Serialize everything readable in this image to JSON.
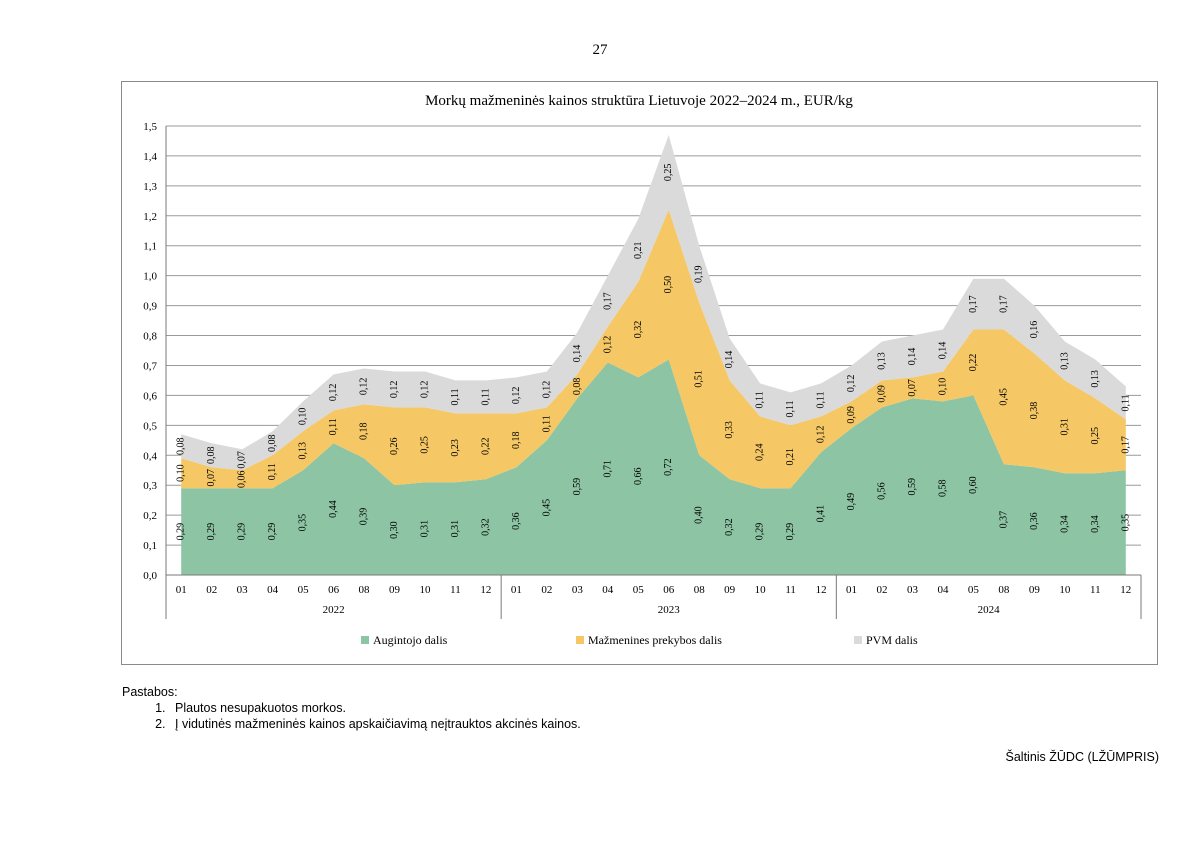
{
  "page_number": "27",
  "colors": {
    "producer": "#8cc4a4",
    "retail": "#f5c865",
    "vat": "#dadada",
    "grid": "#9a9a9a",
    "frame": "#8a8a8a"
  },
  "chart_data": {
    "type": "area",
    "stacked": true,
    "title": "Morkų mažmeninės kainos struktūra Lietuvoje 2022–2024 m., EUR/kg",
    "xlabel": "",
    "ylabel": "",
    "ylim": [
      0,
      1.5
    ],
    "y_ticks": [
      "0,0",
      "0,1",
      "0,2",
      "0,3",
      "0,4",
      "0,5",
      "0,6",
      "0,7",
      "0,8",
      "0,9",
      "1,0",
      "1,1",
      "1,2",
      "1,3",
      "1,4",
      "1,5"
    ],
    "categories": [
      "01",
      "02",
      "03",
      "04",
      "05",
      "06",
      "08",
      "09",
      "10",
      "11",
      "12",
      "01",
      "02",
      "03",
      "04",
      "05",
      "06",
      "08",
      "09",
      "10",
      "11",
      "12",
      "01",
      "02",
      "03",
      "04",
      "05",
      "08",
      "09",
      "10",
      "11",
      "12"
    ],
    "groups": [
      {
        "label": "2022",
        "count": 11
      },
      {
        "label": "2023",
        "count": 11
      },
      {
        "label": "2024",
        "count": 10
      }
    ],
    "legend_position": "bottom",
    "series": [
      {
        "name": "Augintojo dalis",
        "color_key": "producer",
        "values": [
          0.29,
          0.29,
          0.29,
          0.29,
          0.35,
          0.44,
          0.39,
          0.3,
          0.31,
          0.31,
          0.32,
          0.36,
          0.45,
          0.59,
          0.71,
          0.66,
          0.72,
          0.4,
          0.32,
          0.29,
          0.29,
          0.41,
          0.49,
          0.56,
          0.59,
          0.58,
          0.6,
          0.37,
          0.36,
          0.34,
          0.34,
          0.35
        ],
        "labels": [
          "0,29",
          "0,29",
          "0,29",
          "0,29",
          "0,35",
          "0,44",
          "0,39",
          "0,30",
          "0,31",
          "0,31",
          "0,32",
          "0,36",
          "0,45",
          "0,59",
          "0,71",
          "0,66",
          "0,72",
          "0,40",
          "0,32",
          "0,29",
          "0,29",
          "0,41",
          "0,49",
          "0,56",
          "0,59",
          "0,58",
          "0,60",
          "0,37",
          "0,36",
          "0,34",
          "0,34",
          "0,35"
        ]
      },
      {
        "name": "Mažmenines prekybos dalis",
        "color_key": "retail",
        "values": [
          0.1,
          0.07,
          0.06,
          0.11,
          0.13,
          0.11,
          0.18,
          0.26,
          0.25,
          0.23,
          0.22,
          0.18,
          0.11,
          0.08,
          0.12,
          0.32,
          0.5,
          0.51,
          0.33,
          0.24,
          0.21,
          0.12,
          0.09,
          0.09,
          0.07,
          0.1,
          0.22,
          0.45,
          0.38,
          0.31,
          0.25,
          0.17
        ],
        "labels": [
          "0,10",
          "0,07",
          "0,06",
          "0,11",
          "0,13",
          "0,11",
          "0,18",
          "0,26",
          "0,25",
          "0,23",
          "0,22",
          "0,18",
          "0,11",
          "0,08",
          "0,12",
          "0,32",
          "0,50",
          "0,51",
          "0,33",
          "0,24",
          "0,21",
          "0,12",
          "0,09",
          "0,09",
          "0,07",
          "0,10",
          "0,22",
          "0,45",
          "0,38",
          "0,31",
          "0,25",
          "0,17"
        ]
      },
      {
        "name": "PVM dalis",
        "color_key": "vat",
        "values": [
          0.08,
          0.08,
          0.07,
          0.08,
          0.1,
          0.12,
          0.12,
          0.12,
          0.12,
          0.11,
          0.11,
          0.12,
          0.12,
          0.14,
          0.17,
          0.21,
          0.25,
          0.19,
          0.14,
          0.11,
          0.11,
          0.11,
          0.12,
          0.13,
          0.14,
          0.14,
          0.17,
          0.17,
          0.16,
          0.13,
          0.13,
          0.11
        ],
        "labels": [
          "0,08",
          "0,08",
          "0,07",
          "0,08",
          "0,10",
          "0,12",
          "0,12",
          "0,12",
          "0,12",
          "0,11",
          "0,11",
          "0,12",
          "0,12",
          "0,14",
          "0,17",
          "0,21",
          "0,25",
          "0,19",
          "0,14",
          "0,11",
          "0,11",
          "0,11",
          "0,12",
          "0,13",
          "0,14",
          "0,14",
          "0,17",
          "0,17",
          "0,16",
          "0,13",
          "0,13",
          "0,11"
        ]
      }
    ]
  },
  "notes": {
    "heading": "Pastabos:",
    "items": [
      "Plautos nesupakuotos morkos.",
      "Į vidutinės mažmeninės kainos apskaičiavimą neįtrauktos akcinės kainos."
    ]
  },
  "source": "Šaltinis ŽŪDC (LŽŪMPRIS)"
}
